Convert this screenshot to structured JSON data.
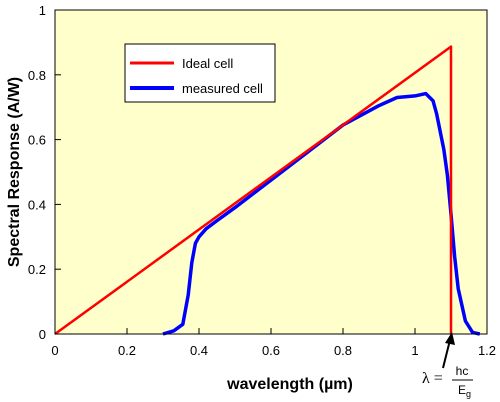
{
  "colors": {
    "plot_bg": "#FFFFCC",
    "ideal": "#FF0000",
    "measured": "#0000FF",
    "axis": "#000000"
  },
  "annotation": {
    "lambda": "λ =",
    "numerator": "hc",
    "denominator_base": "E",
    "denominator_sub": "g"
  },
  "chart_data": {
    "type": "line",
    "xlabel": "wavelength (µm)",
    "ylabel": "Spectral Response (A/W)",
    "xlim": [
      0,
      1.2
    ],
    "ylim": [
      0,
      1
    ],
    "grid": false,
    "legend_position": "top-left inset",
    "x_ticks": [
      0,
      0.2,
      0.4,
      0.6,
      0.8,
      1,
      1.2
    ],
    "x_tick_labels": [
      "0",
      "0.2",
      "0.4",
      "0.6",
      "0.8",
      "1",
      "1.2"
    ],
    "y_ticks": [
      0,
      0.2,
      0.4,
      0.6,
      0.8,
      1
    ],
    "y_tick_labels": [
      "0",
      "0.2",
      "0.4",
      "0.6",
      "0.8",
      "1"
    ],
    "series": [
      {
        "name": "Ideal cell",
        "x": [
          0,
          1.1,
          1.1
        ],
        "y": [
          0,
          0.887,
          0
        ]
      },
      {
        "name": "measured cell",
        "x": [
          0.3,
          0.33,
          0.355,
          0.37,
          0.38,
          0.39,
          0.4,
          0.42,
          0.45,
          0.5,
          0.6,
          0.7,
          0.8,
          0.9,
          0.95,
          1.0,
          1.03,
          1.05,
          1.06,
          1.08,
          1.09,
          1.1,
          1.11,
          1.12,
          1.14,
          1.16,
          1.18
        ],
        "y": [
          0,
          0.01,
          0.03,
          0.12,
          0.22,
          0.28,
          0.3,
          0.325,
          0.35,
          0.39,
          0.475,
          0.56,
          0.645,
          0.705,
          0.73,
          0.735,
          0.742,
          0.72,
          0.68,
          0.57,
          0.49,
          0.37,
          0.24,
          0.14,
          0.04,
          0.005,
          0
        ]
      }
    ]
  }
}
